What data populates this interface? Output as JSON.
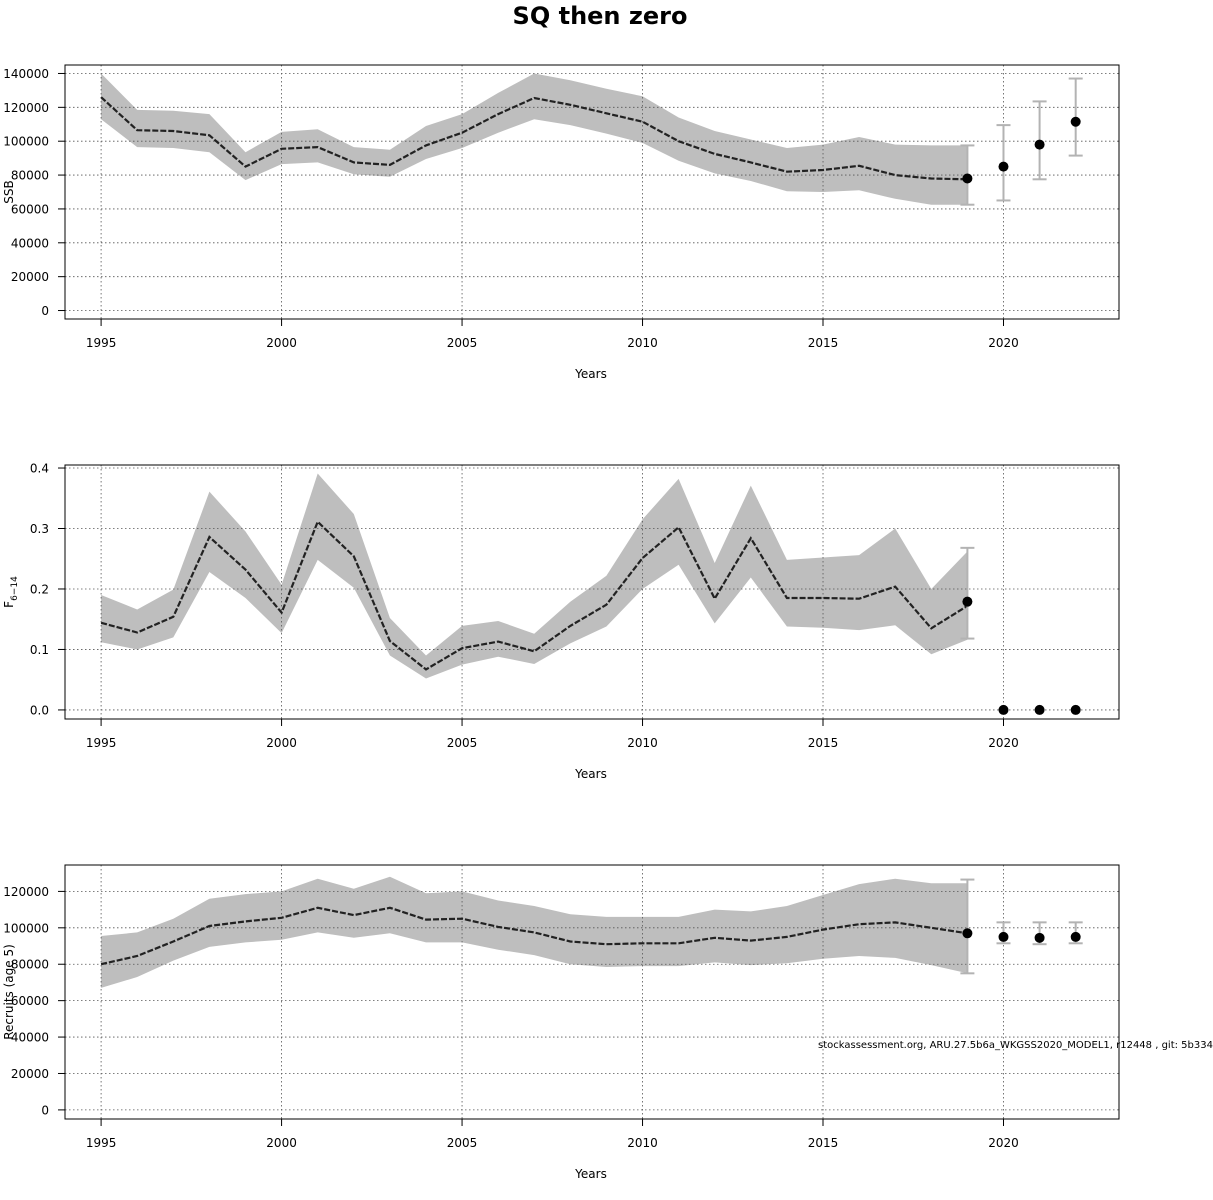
{
  "title": "SQ then zero",
  "footer_note": "stockassessment.org, ARU.27.5b6a_WKGSS2020_MODEL1, r12448 , git: 5b334",
  "colors": {
    "band": "#bebebe",
    "line": "#222222",
    "point": "#000000",
    "errorbar": "#b3b3b3",
    "grid": "#555555"
  },
  "chart_data": [
    {
      "type": "line",
      "ylabel": "SSB",
      "xlabel": "Years",
      "xlim": [
        1994,
        2023.2
      ],
      "ylim": [
        -5000,
        145000
      ],
      "x_ticks": [
        1995,
        2000,
        2005,
        2010,
        2015,
        2020
      ],
      "y_ticks": [
        0,
        20000,
        40000,
        60000,
        80000,
        100000,
        120000,
        140000
      ],
      "grid": true,
      "series": [
        {
          "x": [
            1995,
            1996,
            1997,
            1998,
            1999,
            2000,
            2001,
            2002,
            2003,
            2004,
            2005,
            2006,
            2007,
            2008,
            2009,
            2010,
            2011,
            2012,
            2013,
            2014,
            2015,
            2016,
            2017,
            2018,
            2019
          ],
          "y": [
            126000,
            106500,
            106000,
            103500,
            85000,
            95500,
            96500,
            87500,
            86000,
            97500,
            105000,
            116000,
            125500,
            121500,
            116500,
            111500,
            100000,
            92500,
            87500,
            82000,
            83000,
            85500,
            80000,
            78000,
            77500
          ],
          "lower": [
            113000,
            96500,
            96000,
            93500,
            77000,
            86500,
            87500,
            80500,
            79000,
            89500,
            96000,
            105000,
            113000,
            109500,
            104500,
            99000,
            88500,
            81000,
            76500,
            70500,
            70000,
            71000,
            66000,
            62500,
            62500
          ],
          "upper": [
            140000,
            118500,
            118000,
            116000,
            93500,
            105500,
            107000,
            96500,
            95000,
            109000,
            116000,
            128500,
            140000,
            136000,
            131000,
            126500,
            114000,
            106000,
            101000,
            96000,
            98000,
            102500,
            98000,
            97500,
            97500
          ]
        }
      ],
      "forecast": {
        "x": [
          2019,
          2020,
          2021,
          2022
        ],
        "y": [
          78000,
          85000,
          98000,
          111500
        ],
        "lower": [
          62500,
          65000,
          77500,
          91500
        ],
        "upper": [
          97500,
          109500,
          123500,
          137000
        ]
      }
    },
    {
      "type": "line",
      "ylabel": "F",
      "ylabel_sub": "6−14",
      "xlabel": "Years",
      "xlim": [
        1994,
        2023.2
      ],
      "ylim": [
        -0.015,
        0.405
      ],
      "x_ticks": [
        1995,
        2000,
        2005,
        2010,
        2015,
        2020
      ],
      "y_ticks": [
        0.0,
        0.1,
        0.2,
        0.3,
        0.4
      ],
      "y_tick_labels": [
        "0.0",
        "0.1",
        "0.2",
        "0.3",
        "0.4"
      ],
      "grid": true,
      "series": [
        {
          "x": [
            1995,
            1996,
            1997,
            1998,
            1999,
            2000,
            2001,
            2002,
            2003,
            2004,
            2005,
            2006,
            2007,
            2008,
            2009,
            2010,
            2011,
            2012,
            2013,
            2014,
            2015,
            2016,
            2017,
            2018,
            2019
          ],
          "y": [
            0.144,
            0.128,
            0.154,
            0.286,
            0.232,
            0.161,
            0.311,
            0.254,
            0.114,
            0.067,
            0.102,
            0.113,
            0.097,
            0.139,
            0.174,
            0.251,
            0.302,
            0.184,
            0.284,
            0.185,
            0.185,
            0.184,
            0.204,
            0.135,
            0.172
          ],
          "lower": [
            0.112,
            0.1,
            0.12,
            0.228,
            0.185,
            0.127,
            0.248,
            0.202,
            0.09,
            0.052,
            0.075,
            0.088,
            0.076,
            0.11,
            0.138,
            0.2,
            0.24,
            0.143,
            0.219,
            0.138,
            0.136,
            0.132,
            0.14,
            0.092,
            0.116
          ],
          "upper": [
            0.19,
            0.166,
            0.199,
            0.361,
            0.295,
            0.207,
            0.391,
            0.324,
            0.152,
            0.09,
            0.139,
            0.147,
            0.126,
            0.179,
            0.222,
            0.315,
            0.382,
            0.243,
            0.371,
            0.248,
            0.252,
            0.256,
            0.3,
            0.2,
            0.262
          ]
        }
      ],
      "forecast": {
        "x": [
          2019,
          2020,
          2021,
          2022
        ],
        "y": [
          0.179,
          0.0,
          0.0,
          0.0
        ],
        "lower": [
          0.118,
          0.0,
          0.0,
          0.0
        ],
        "upper": [
          0.268,
          0.0,
          0.0,
          0.0
        ]
      }
    },
    {
      "type": "line",
      "ylabel": "Recruits (age 5)",
      "xlabel": "Years",
      "xlim": [
        1994,
        2023.2
      ],
      "ylim": [
        -5000,
        134500
      ],
      "x_ticks": [
        1995,
        2000,
        2005,
        2010,
        2015,
        2020
      ],
      "y_ticks": [
        0,
        20000,
        40000,
        60000,
        80000,
        100000,
        120000
      ],
      "grid": true,
      "series": [
        {
          "x": [
            1995,
            1996,
            1997,
            1998,
            1999,
            2000,
            2001,
            2002,
            2003,
            2004,
            2005,
            2006,
            2007,
            2008,
            2009,
            2010,
            2011,
            2012,
            2013,
            2014,
            2015,
            2016,
            2017,
            2018,
            2019
          ],
          "y": [
            80000,
            84500,
            92500,
            101000,
            103500,
            105500,
            111000,
            107000,
            111000,
            104500,
            105000,
            100500,
            97500,
            92500,
            91000,
            91500,
            91500,
            94500,
            93000,
            95000,
            99000,
            102000,
            103000,
            100000,
            97000
          ],
          "lower": [
            67000,
            73000,
            82000,
            89500,
            92000,
            93500,
            97500,
            94500,
            97000,
            92000,
            92000,
            88000,
            85000,
            80000,
            78500,
            79000,
            79000,
            81000,
            79500,
            80500,
            83000,
            84500,
            83500,
            79500,
            75000
          ],
          "upper": [
            95500,
            97500,
            105000,
            116000,
            118500,
            120000,
            127000,
            121500,
            128000,
            119000,
            120000,
            115000,
            112000,
            107500,
            106000,
            106000,
            106000,
            110000,
            109000,
            112000,
            118000,
            124000,
            127000,
            124500,
            124500
          ]
        }
      ],
      "forecast": {
        "x": [
          2019,
          2020,
          2021,
          2022
        ],
        "y": [
          97000,
          95000,
          94500,
          95000
        ],
        "lower": [
          75000,
          91500,
          91000,
          91500
        ],
        "upper": [
          126500,
          103000,
          103000,
          103000
        ]
      }
    }
  ]
}
